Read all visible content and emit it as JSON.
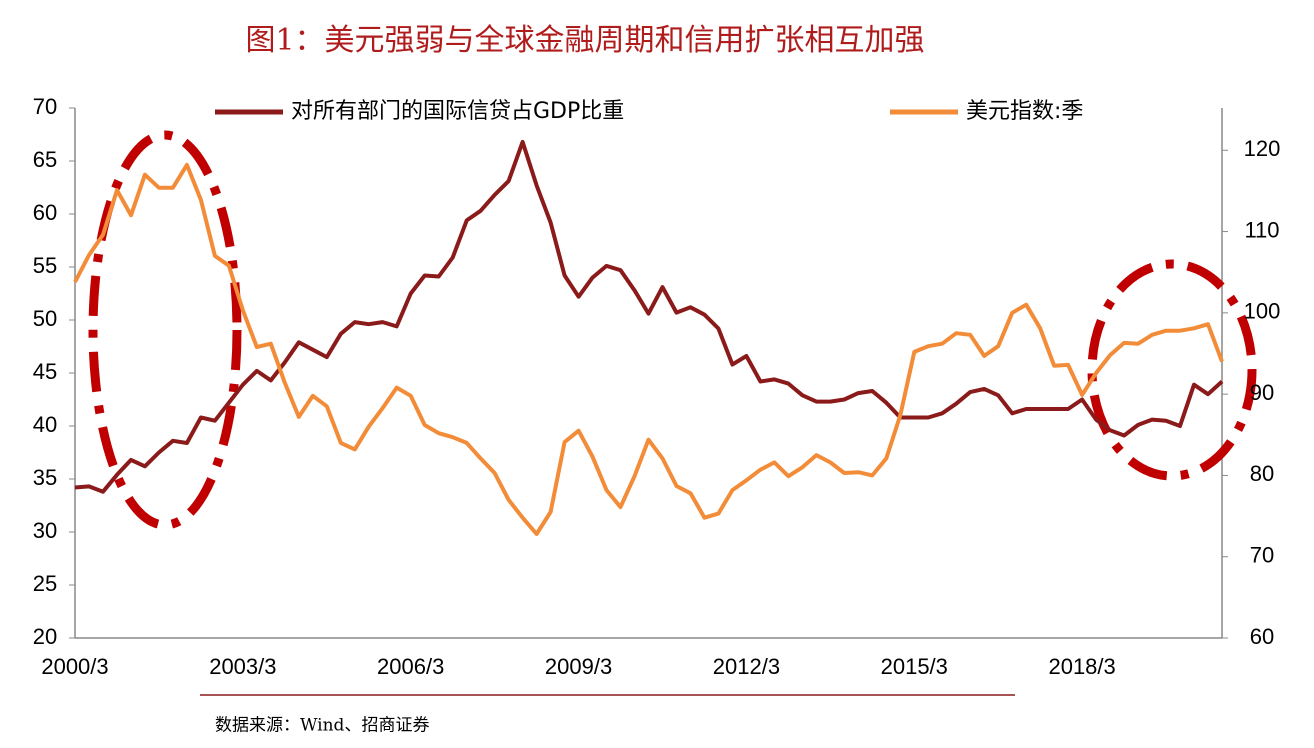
{
  "chart_data": {
    "type": "line",
    "title": "图1：美元强弱与全球金融周期和信用扩张相互加强",
    "source": "数据来源：Wind、招商证券",
    "categories": [
      "2000/3",
      null,
      null,
      null,
      null,
      null,
      null,
      null,
      null,
      null,
      null,
      null,
      "2003/3",
      null,
      null,
      null,
      null,
      null,
      null,
      null,
      null,
      null,
      null,
      null,
      "2006/3",
      null,
      null,
      null,
      null,
      null,
      null,
      null,
      null,
      null,
      null,
      null,
      "2009/3",
      null,
      null,
      null,
      null,
      null,
      null,
      null,
      null,
      null,
      null,
      null,
      "2012/3",
      null,
      null,
      null,
      null,
      null,
      null,
      null,
      null,
      null,
      null,
      null,
      "2015/3",
      null,
      null,
      null,
      null,
      null,
      null,
      null,
      null,
      null,
      null,
      null,
      "2018/3",
      null,
      null,
      null,
      null,
      null,
      null,
      null,
      null,
      null,
      null
    ],
    "series": [
      {
        "name": "对所有部门的国际信贷占GDP比重",
        "color": "#8b1a1a",
        "axis": "y",
        "values": [
          34.2,
          34.3,
          33.8,
          35.4,
          36.8,
          36.2,
          37.5,
          38.6,
          38.4,
          40.8,
          40.5,
          42.2,
          43.9,
          45.2,
          44.3,
          46.0,
          47.9,
          47.2,
          46.5,
          48.7,
          49.8,
          49.6,
          49.8,
          49.4,
          52.5,
          54.2,
          54.1,
          55.9,
          59.4,
          60.3,
          61.8,
          63.1,
          66.8,
          62.7,
          59.2,
          54.2,
          52.2,
          54.0,
          55.1,
          54.7,
          52.8,
          50.6,
          53.1,
          50.7,
          51.2,
          50.5,
          49.2,
          45.8,
          46.6,
          44.2,
          44.4,
          44.0,
          42.9,
          42.3,
          42.3,
          42.5,
          43.1,
          43.3,
          42.2,
          40.8,
          40.8,
          40.8,
          41.2,
          42.1,
          43.2,
          43.5,
          42.9,
          41.2,
          41.6,
          41.6,
          41.6,
          41.6,
          42.5,
          40.6,
          39.6,
          39.1,
          40.1,
          40.6,
          40.5,
          40.0,
          43.9,
          43.0,
          44.2
        ]
      },
      {
        "name": "美元指数:季",
        "color": "#f28c38",
        "axis": "y2",
        "values": [
          103.8,
          107.1,
          109.6,
          115.1,
          112.0,
          117.0,
          115.4,
          115.4,
          118.2,
          113.9,
          107.0,
          105.8,
          100.3,
          95.8,
          96.2,
          91.4,
          87.2,
          89.8,
          88.5,
          84.0,
          83.2,
          86.0,
          88.3,
          90.8,
          89.8,
          86.2,
          85.2,
          84.7,
          84.0,
          82.1,
          80.3,
          77.0,
          74.8,
          72.8,
          75.5,
          84.1,
          85.5,
          82.3,
          78.2,
          76.1,
          79.9,
          84.4,
          82.1,
          78.7,
          77.8,
          74.8,
          75.3,
          78.2,
          79.4,
          80.7,
          81.6,
          79.9,
          81.0,
          82.5,
          81.6,
          80.3,
          80.4,
          80.0,
          82.1,
          87.4,
          95.2,
          95.9,
          96.2,
          97.5,
          97.3,
          94.7,
          95.9,
          100.0,
          101.0,
          98.1,
          93.5,
          93.6,
          89.9,
          92.6,
          94.8,
          96.3,
          96.2,
          97.3,
          97.8,
          97.8,
          98.1,
          98.6,
          94.0
        ]
      }
    ],
    "ylim": [
      20,
      70
    ],
    "yticks": [
      20,
      25,
      30,
      35,
      40,
      45,
      50,
      55,
      60,
      65,
      70
    ],
    "y2lim": [
      60,
      125.2
    ],
    "y2ticks": [
      60,
      70,
      80,
      90,
      100,
      110,
      120
    ],
    "grid": false,
    "legend": "top"
  }
}
